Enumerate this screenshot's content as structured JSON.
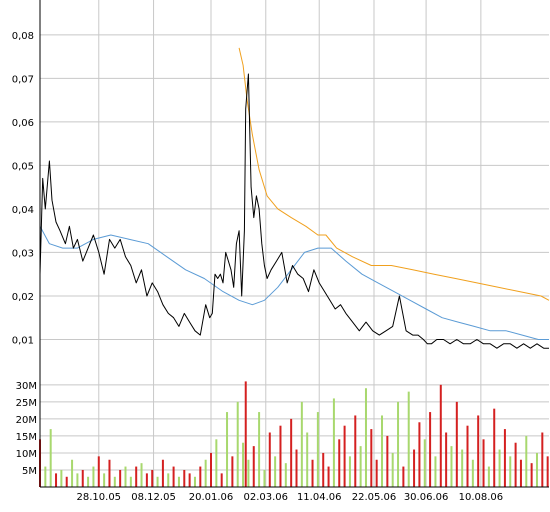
{
  "chart_data": [
    {
      "type": "line",
      "title": "",
      "xlabel": "",
      "ylabel": "",
      "x_ticks": [
        "28.10.05",
        "08.12.05",
        "20.01.06",
        "02.03.06",
        "11.04.06",
        "22.05.06",
        "30.06.06",
        "10.08.06"
      ],
      "y_ticks": [
        "0,01",
        "0,02",
        "0,03",
        "0,04",
        "0,05",
        "0,06",
        "0,07",
        "0,08"
      ],
      "ylim": [
        0.0,
        0.088
      ],
      "grid": true,
      "x_start": "2005-09-14",
      "x_end": "2006-09-30",
      "series": [
        {
          "name": "",
          "color": "#000000",
          "x": [
            "2005-09-14",
            "2005-09-16",
            "2005-09-18",
            "2005-09-21",
            "2005-09-23",
            "2005-09-26",
            "2005-09-29",
            "2005-10-03",
            "2005-10-06",
            "2005-10-09",
            "2005-10-12",
            "2005-10-16",
            "2005-10-20",
            "2005-10-24",
            "2005-10-28",
            "2005-11-01",
            "2005-11-05",
            "2005-11-09",
            "2005-11-13",
            "2005-11-17",
            "2005-11-21",
            "2005-11-25",
            "2005-11-29",
            "2005-12-03",
            "2005-12-07",
            "2005-12-11",
            "2005-12-15",
            "2005-12-19",
            "2005-12-23",
            "2005-12-27",
            "2005-12-31",
            "2006-01-04",
            "2006-01-08",
            "2006-01-12",
            "2006-01-16",
            "2006-01-19",
            "2006-01-21",
            "2006-01-23",
            "2006-01-25",
            "2006-01-27",
            "2006-01-29",
            "2006-01-31",
            "2006-02-02",
            "2006-02-04",
            "2006-02-06",
            "2006-02-08",
            "2006-02-10",
            "2006-02-12",
            "2006-02-14",
            "2006-02-15",
            "2006-02-17",
            "2006-02-19",
            "2006-02-21",
            "2006-02-23",
            "2006-02-25",
            "2006-02-27",
            "2006-03-01",
            "2006-03-03",
            "2006-03-06",
            "2006-03-10",
            "2006-03-14",
            "2006-03-18",
            "2006-03-22",
            "2006-03-26",
            "2006-03-30",
            "2006-04-03",
            "2006-04-07",
            "2006-04-11",
            "2006-04-15",
            "2006-04-19",
            "2006-04-23",
            "2006-04-27",
            "2006-05-01",
            "2006-05-06",
            "2006-05-11",
            "2006-05-16",
            "2006-05-21",
            "2006-05-26",
            "2006-05-31",
            "2006-06-05",
            "2006-06-10",
            "2006-06-15",
            "2006-06-20",
            "2006-06-24",
            "2006-06-28",
            "2006-07-01",
            "2006-07-04",
            "2006-07-08",
            "2006-07-13",
            "2006-07-18",
            "2006-07-23",
            "2006-07-28",
            "2006-08-02",
            "2006-08-07",
            "2006-08-12",
            "2006-08-17",
            "2006-08-22",
            "2006-08-27",
            "2006-09-01",
            "2006-09-06",
            "2006-09-11",
            "2006-09-16",
            "2006-09-21",
            "2006-09-26",
            "2006-09-30"
          ],
          "values": [
            0.025,
            0.047,
            0.04,
            0.051,
            0.042,
            0.037,
            0.035,
            0.032,
            0.036,
            0.031,
            0.033,
            0.028,
            0.031,
            0.034,
            0.03,
            0.025,
            0.033,
            0.031,
            0.033,
            0.029,
            0.027,
            0.023,
            0.026,
            0.02,
            0.023,
            0.021,
            0.018,
            0.016,
            0.015,
            0.013,
            0.016,
            0.014,
            0.012,
            0.011,
            0.018,
            0.015,
            0.016,
            0.025,
            0.024,
            0.025,
            0.023,
            0.03,
            0.028,
            0.026,
            0.022,
            0.032,
            0.035,
            0.02,
            0.035,
            0.063,
            0.071,
            0.045,
            0.038,
            0.043,
            0.04,
            0.032,
            0.027,
            0.024,
            0.026,
            0.028,
            0.03,
            0.023,
            0.027,
            0.025,
            0.024,
            0.021,
            0.026,
            0.023,
            0.021,
            0.019,
            0.017,
            0.018,
            0.016,
            0.014,
            0.012,
            0.014,
            0.012,
            0.011,
            0.012,
            0.013,
            0.02,
            0.012,
            0.011,
            0.011,
            0.01,
            0.009,
            0.009,
            0.01,
            0.01,
            0.009,
            0.01,
            0.009,
            0.009,
            0.01,
            0.009,
            0.009,
            0.008,
            0.009,
            0.009,
            0.008,
            0.009,
            0.008,
            0.009,
            0.008,
            0.008
          ]
        },
        {
          "name": "",
          "color": "#5b9bd5",
          "x": [
            "2005-09-14",
            "2005-09-21",
            "2005-10-01",
            "2005-10-12",
            "2005-10-24",
            "2005-11-06",
            "2005-11-20",
            "2005-12-04",
            "2005-12-18",
            "2006-01-01",
            "2006-01-15",
            "2006-01-29",
            "2006-02-10",
            "2006-02-20",
            "2006-03-01",
            "2006-03-11",
            "2006-03-21",
            "2006-03-31",
            "2006-04-10",
            "2006-04-20",
            "2006-05-01",
            "2006-05-13",
            "2006-05-25",
            "2006-06-06",
            "2006-06-18",
            "2006-06-30",
            "2006-07-12",
            "2006-07-24",
            "2006-08-05",
            "2006-08-17",
            "2006-08-29",
            "2006-09-10",
            "2006-09-22",
            "2006-09-30"
          ],
          "values": [
            0.036,
            0.032,
            0.031,
            0.031,
            0.033,
            0.034,
            0.033,
            0.032,
            0.029,
            0.026,
            0.024,
            0.021,
            0.019,
            0.018,
            0.019,
            0.022,
            0.026,
            0.03,
            0.031,
            0.031,
            0.028,
            0.025,
            0.023,
            0.021,
            0.019,
            0.017,
            0.015,
            0.014,
            0.013,
            0.012,
            0.012,
            0.011,
            0.01,
            0.01
          ]
        },
        {
          "name": "",
          "color": "#f0a01e",
          "x": [
            "2006-02-10",
            "2006-02-13",
            "2006-02-16",
            "2006-02-20",
            "2006-02-25",
            "2006-03-03",
            "2006-03-11",
            "2006-03-21",
            "2006-04-01",
            "2006-04-10",
            "2006-04-16",
            "2006-04-24",
            "2006-05-06",
            "2006-05-20",
            "2006-06-04",
            "2006-06-20",
            "2006-07-06",
            "2006-07-22",
            "2006-08-07",
            "2006-08-23",
            "2006-09-08",
            "2006-09-24",
            "2006-09-30"
          ],
          "values": [
            0.077,
            0.073,
            0.065,
            0.057,
            0.049,
            0.043,
            0.04,
            0.038,
            0.036,
            0.034,
            0.034,
            0.031,
            0.029,
            0.027,
            0.027,
            0.026,
            0.025,
            0.024,
            0.023,
            0.022,
            0.021,
            0.02,
            0.019
          ]
        }
      ]
    },
    {
      "type": "bar",
      "title": "",
      "xlabel": "",
      "ylabel": "",
      "x_ticks": [
        "28.10.05",
        "08.12.05",
        "20.01.06",
        "02.03.06",
        "11.04.06",
        "22.05.06",
        "30.06.06",
        "10.08.06"
      ],
      "y_ticks": [
        "5M",
        "10M",
        "15M",
        "20M",
        "25M",
        "30M"
      ],
      "ylim": [
        0,
        32
      ],
      "grid": true,
      "colors": {
        "up": "#a8d86e",
        "down": "#d42020"
      },
      "series": [
        {
          "name": "",
          "x": [
            "2005-09-14",
            "2005-09-18",
            "2005-09-22",
            "2005-09-26",
            "2005-09-30",
            "2005-10-04",
            "2005-10-08",
            "2005-10-12",
            "2005-10-16",
            "2005-10-20",
            "2005-10-24",
            "2005-10-28",
            "2005-11-01",
            "2005-11-05",
            "2005-11-09",
            "2005-11-13",
            "2005-11-17",
            "2005-11-21",
            "2005-11-25",
            "2005-11-29",
            "2005-12-03",
            "2005-12-07",
            "2005-12-11",
            "2005-12-15",
            "2005-12-19",
            "2005-12-23",
            "2005-12-27",
            "2005-12-31",
            "2006-01-04",
            "2006-01-08",
            "2006-01-12",
            "2006-01-16",
            "2006-01-20",
            "2006-01-24",
            "2006-01-28",
            "2006-02-01",
            "2006-02-05",
            "2006-02-09",
            "2006-02-13",
            "2006-02-15",
            "2006-02-17",
            "2006-02-21",
            "2006-02-25",
            "2006-03-01",
            "2006-03-05",
            "2006-03-09",
            "2006-03-13",
            "2006-03-17",
            "2006-03-21",
            "2006-03-25",
            "2006-03-29",
            "2006-04-02",
            "2006-04-06",
            "2006-04-10",
            "2006-04-14",
            "2006-04-18",
            "2006-04-22",
            "2006-04-26",
            "2006-04-30",
            "2006-05-04",
            "2006-05-08",
            "2006-05-12",
            "2006-05-16",
            "2006-05-20",
            "2006-05-24",
            "2006-05-28",
            "2006-06-01",
            "2006-06-05",
            "2006-06-09",
            "2006-06-13",
            "2006-06-17",
            "2006-06-21",
            "2006-06-25",
            "2006-06-29",
            "2006-07-03",
            "2006-07-07",
            "2006-07-11",
            "2006-07-15",
            "2006-07-19",
            "2006-07-23",
            "2006-07-27",
            "2006-07-31",
            "2006-08-04",
            "2006-08-08",
            "2006-08-12",
            "2006-08-16",
            "2006-08-20",
            "2006-08-24",
            "2006-08-28",
            "2006-09-01",
            "2006-09-05",
            "2006-09-09",
            "2006-09-13",
            "2006-09-17",
            "2006-09-21",
            "2006-09-25",
            "2006-09-29"
          ],
          "values": [
            14,
            6,
            17,
            4,
            5,
            3,
            8,
            4,
            5,
            3,
            6,
            9,
            4,
            8,
            3,
            5,
            6,
            3,
            6,
            7,
            4,
            5,
            3,
            8,
            4,
            6,
            3,
            5,
            4,
            3,
            6,
            8,
            10,
            14,
            4,
            22,
            9,
            25,
            13,
            31,
            8,
            12,
            22,
            5,
            16,
            9,
            18,
            7,
            20,
            11,
            25,
            16,
            8,
            22,
            10,
            6,
            26,
            14,
            18,
            9,
            21,
            12,
            29,
            17,
            8,
            21,
            15,
            10,
            25,
            6,
            28,
            11,
            19,
            14,
            22,
            9,
            30,
            16,
            12,
            25,
            11,
            18,
            8,
            21,
            14,
            6,
            23,
            11,
            17,
            9,
            13,
            8,
            15,
            7,
            10,
            16,
            9
          ],
          "up": [
            0,
            1,
            1,
            0,
            1,
            0,
            1,
            1,
            0,
            1,
            1,
            0,
            1,
            0,
            1,
            0,
            1,
            1,
            0,
            1,
            0,
            0,
            1,
            0,
            1,
            0,
            1,
            0,
            0,
            1,
            0,
            1,
            0,
            1,
            0,
            1,
            0,
            1,
            1,
            0,
            1,
            0,
            1,
            1,
            0,
            1,
            0,
            1,
            0,
            0,
            1,
            1,
            0,
            1,
            0,
            0,
            1,
            0,
            0,
            1,
            0,
            1,
            1,
            0,
            0,
            1,
            0,
            1,
            1,
            0,
            1,
            0,
            0,
            1,
            0,
            1,
            0,
            0,
            1,
            0,
            1,
            0,
            1,
            0,
            0,
            1,
            0,
            1,
            0,
            1,
            0,
            0,
            1,
            0,
            1,
            0,
            0
          ]
        }
      ]
    }
  ]
}
